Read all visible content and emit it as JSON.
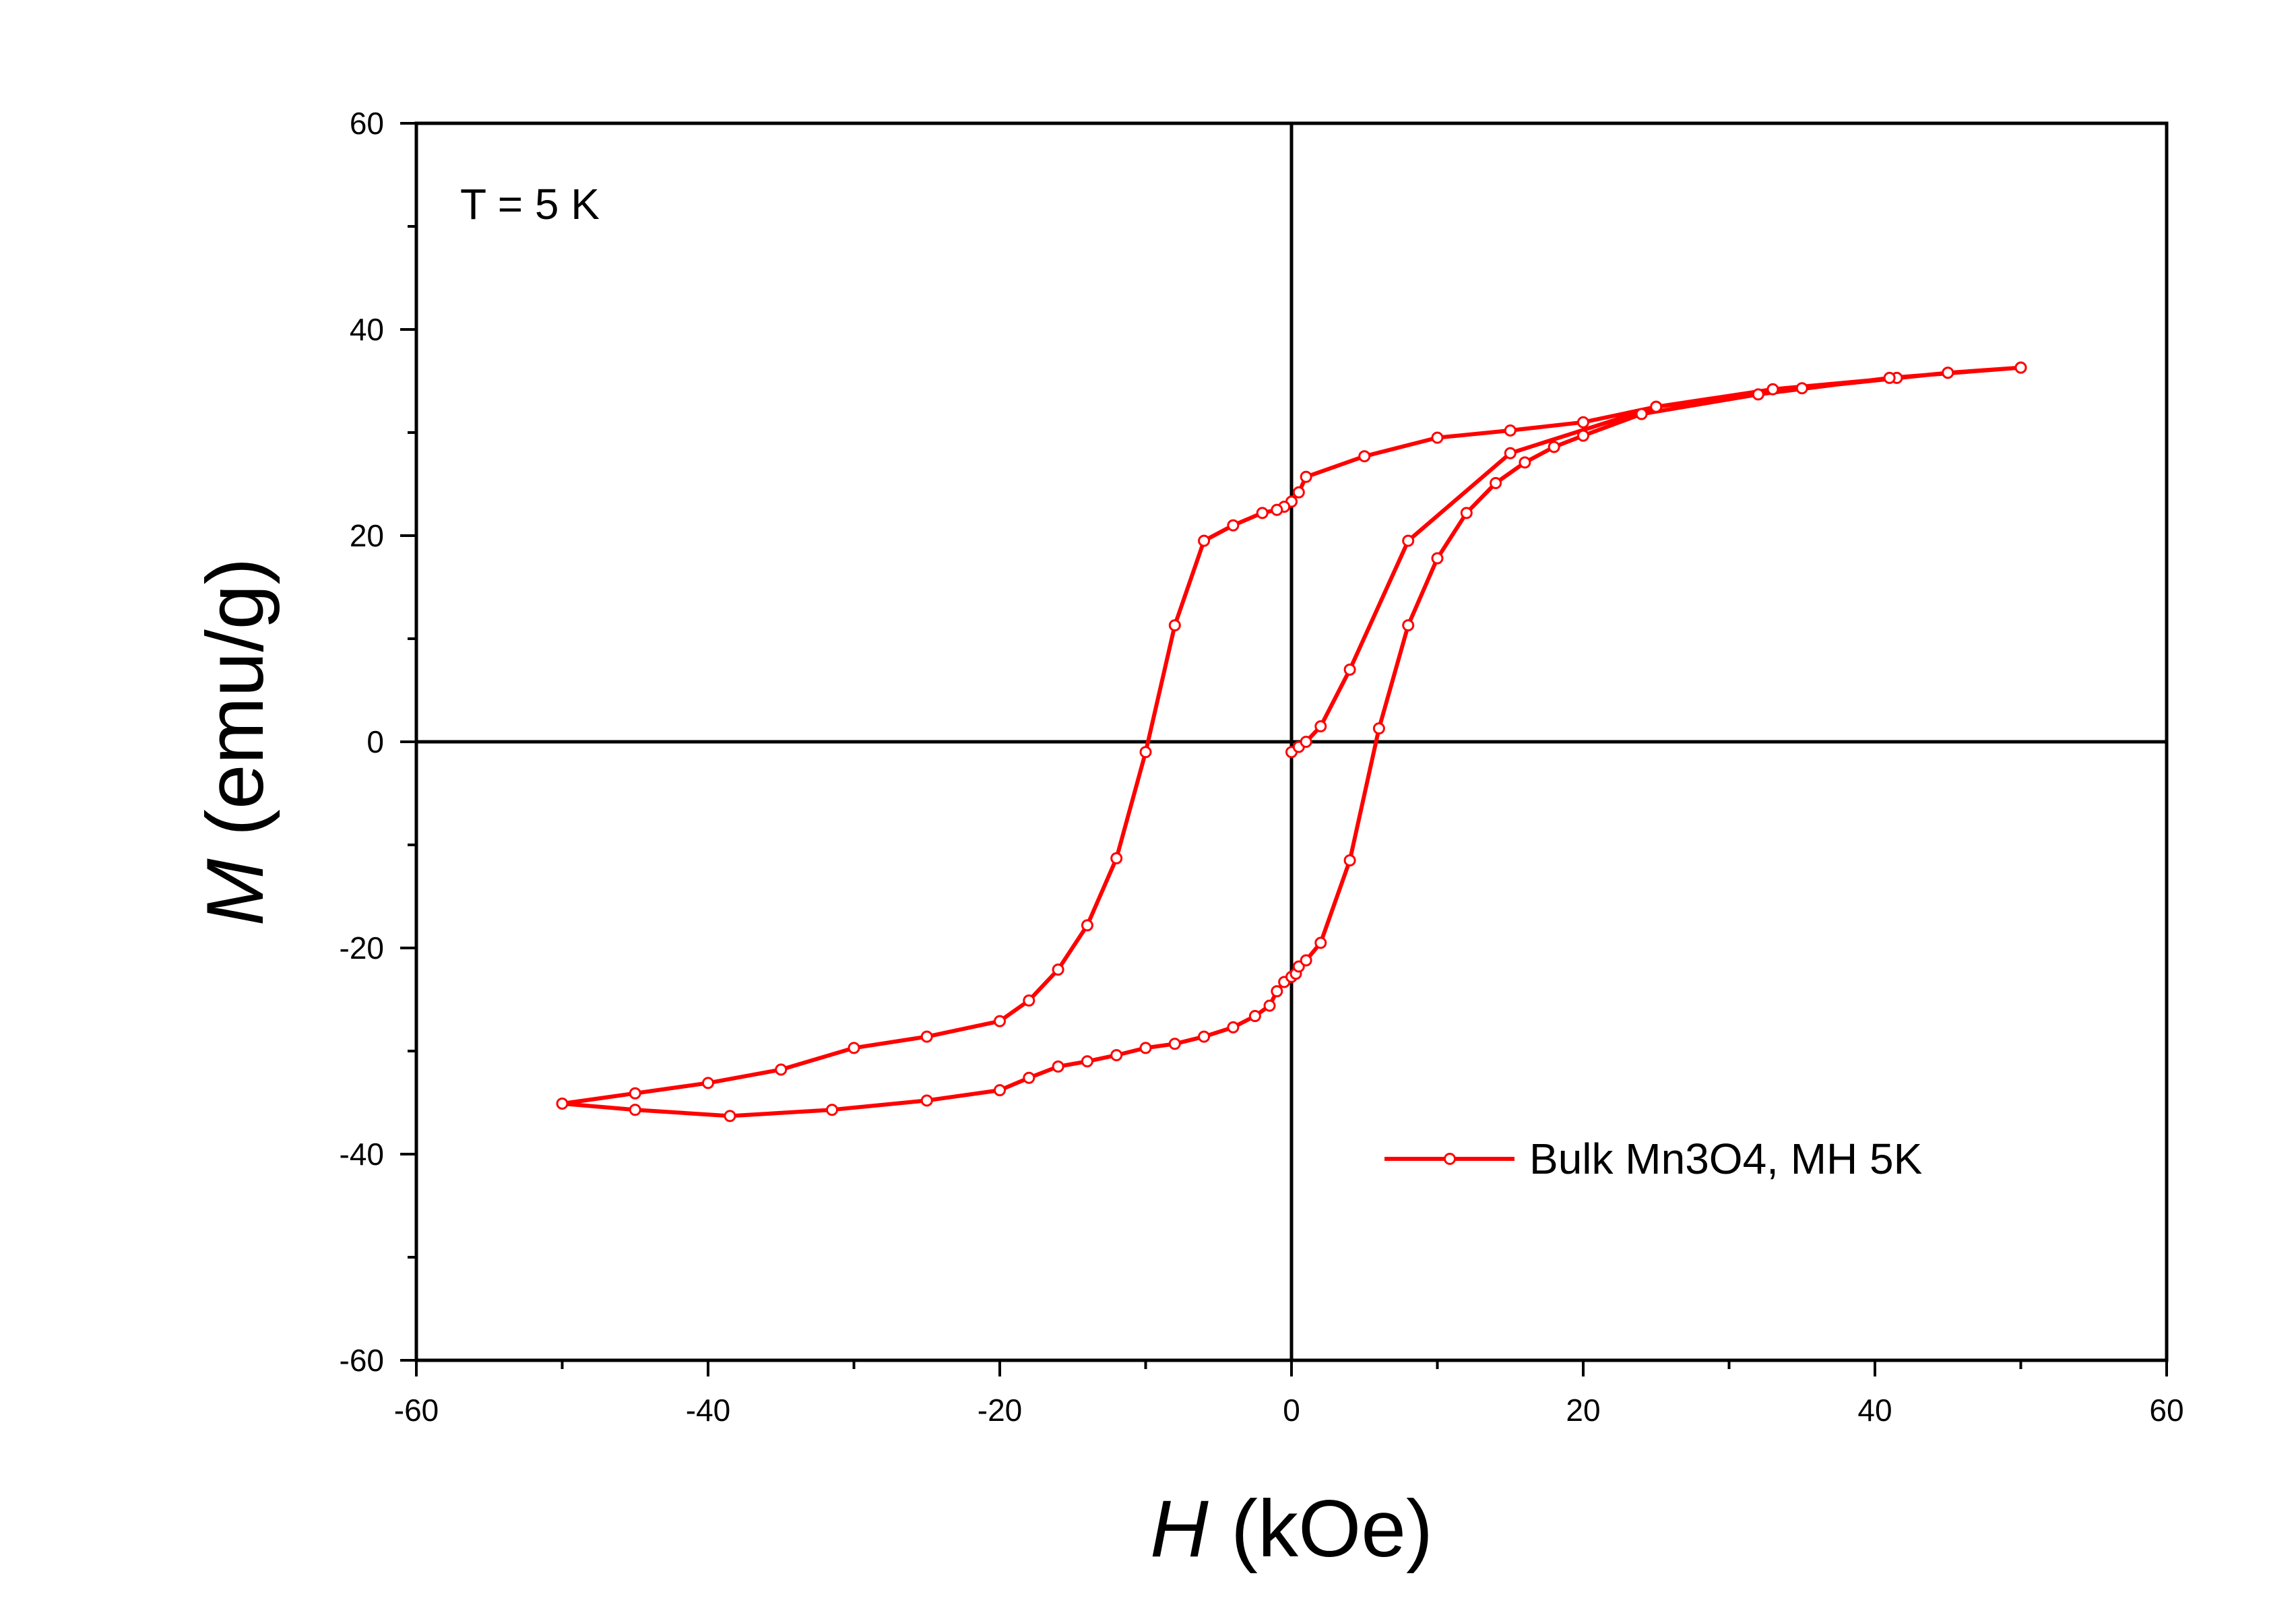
{
  "chart_data": {
    "type": "line",
    "xlabel": {
      "symbol": "H",
      "unit": " (kOe)"
    },
    "ylabel": {
      "symbol": "M",
      "unit": " (emu/g)"
    },
    "xlim": [
      -60,
      60
    ],
    "ylim": [
      -60,
      60
    ],
    "xticks": [
      -60,
      -40,
      -20,
      0,
      20,
      40,
      60
    ],
    "yticks": [
      -60,
      -40,
      -20,
      0,
      20,
      40,
      60
    ],
    "xtick_labels": [
      "-60",
      "-40",
      "-20",
      "0",
      "20",
      "40",
      "60"
    ],
    "ytick_labels": [
      "-60",
      "-40",
      "-20",
      "0",
      "20",
      "40",
      "60"
    ],
    "zero_lines": true,
    "grid": false,
    "legend_position": "bottom-right",
    "annotations": [
      {
        "text": "T = 5 K"
      }
    ],
    "colors": {
      "series": "#ff0000",
      "marker_fill": "#ffffff",
      "axis": "#000000"
    },
    "series": [
      {
        "name": "Bulk Mn3O4, MH 5K",
        "x": [
          0,
          0.5,
          1,
          2,
          4,
          8,
          15,
          25,
          35,
          45,
          50,
          45,
          41.5,
          33,
          25,
          20,
          15,
          10,
          5,
          1,
          0.5,
          0,
          -0.5,
          -1,
          -2,
          -4,
          -6,
          -8,
          -10,
          -12,
          -14,
          -16,
          -18,
          -20,
          -25,
          -30,
          -35,
          -40,
          -45,
          -50,
          -45,
          -38.5,
          -31.5,
          -25,
          -20,
          -18,
          -16,
          -14,
          -12,
          -10,
          -8,
          -6,
          -4,
          -2.5,
          -1.5,
          -1,
          -0.5,
          0,
          0.3,
          0.5,
          1,
          2,
          4,
          6,
          8,
          10,
          12,
          14,
          16,
          18,
          20,
          24,
          32,
          41,
          50
        ],
        "y": [
          -1,
          -0.5,
          0,
          1.5,
          7,
          19.5,
          28,
          32.5,
          34.3,
          35.8,
          36.3,
          35.8,
          35.3,
          34.2,
          32.5,
          31,
          30.2,
          29.5,
          27.7,
          25.7,
          24.2,
          23.3,
          22.8,
          22.5,
          22.2,
          21,
          19.5,
          11.3,
          -1,
          -11.3,
          -17.8,
          -22.1,
          -25.1,
          -27.1,
          -28.6,
          -29.7,
          -31.8,
          -33.1,
          -34.1,
          -35.1,
          -35.7,
          -36.3,
          -35.7,
          -34.8,
          -33.8,
          -32.6,
          -31.5,
          -31,
          -30.4,
          -29.7,
          -29.3,
          -28.6,
          -27.7,
          -26.6,
          -25.6,
          -24.2,
          -23.3,
          -22.8,
          -22.5,
          -21.8,
          -21.2,
          -19.5,
          -11.5,
          1.3,
          11.3,
          17.8,
          22.2,
          25.1,
          27.1,
          28.6,
          29.7,
          31.8,
          33.7,
          35.3,
          36.3
        ]
      }
    ]
  }
}
